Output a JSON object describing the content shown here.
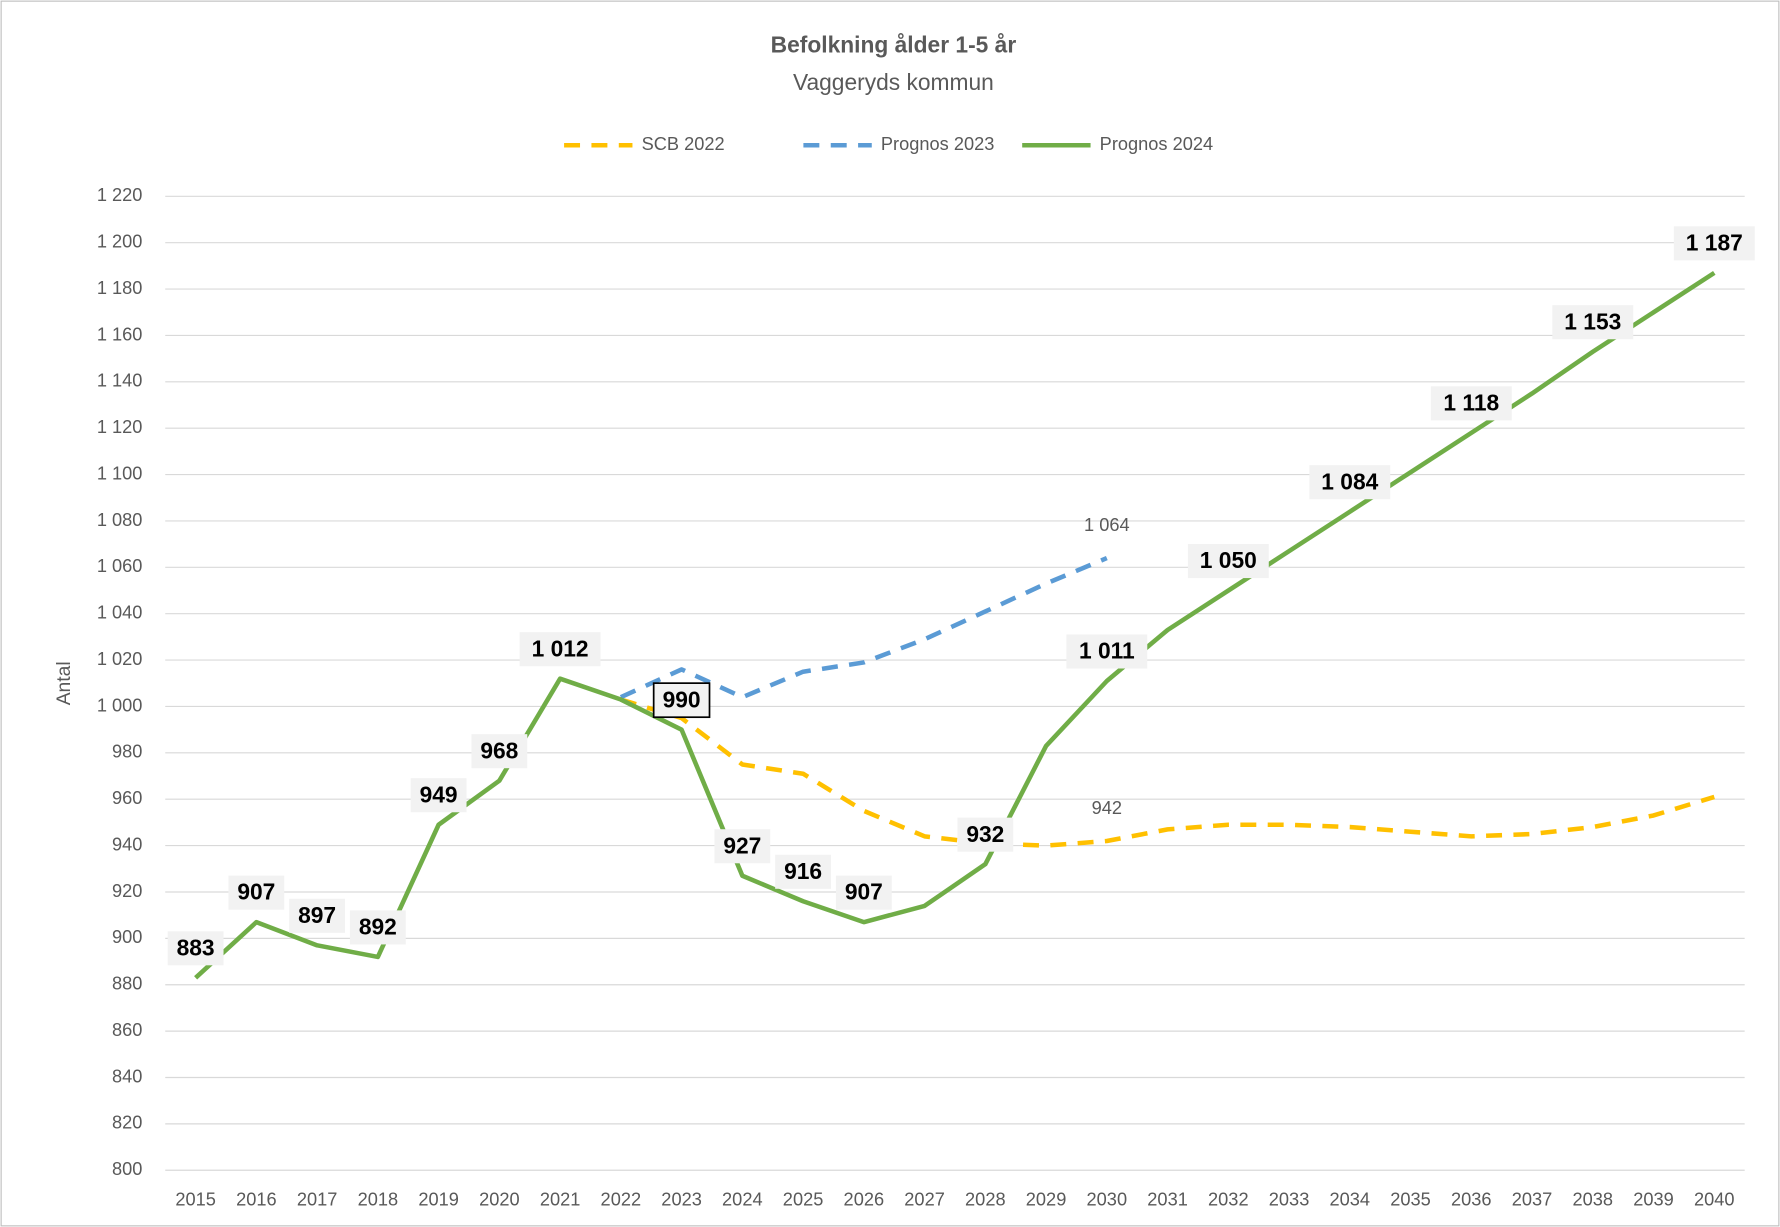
{
  "chart_data": {
    "type": "line",
    "title": "Befolkning ålder 1-5 år",
    "subtitle": "Vaggeryds kommun",
    "y_label": "Antal",
    "categories": [
      "2015",
      "2016",
      "2017",
      "2018",
      "2019",
      "2020",
      "2021",
      "2022",
      "2023",
      "2024",
      "2025",
      "2026",
      "2027",
      "2028",
      "2029",
      "2030",
      "2031",
      "2032",
      "2033",
      "2034",
      "2035",
      "2036",
      "2037",
      "2038",
      "2039",
      "2040"
    ],
    "ylim": [
      800,
      1220
    ],
    "yticks": [
      800,
      820,
      840,
      860,
      880,
      900,
      920,
      940,
      960,
      980,
      {
        "value": 1000,
        "label": "1 000"
      },
      {
        "value": 1020,
        "label": "1 020"
      },
      {
        "value": 1040,
        "label": "1 040"
      },
      {
        "value": 1060,
        "label": "1 060"
      },
      {
        "value": 1080,
        "label": "1 080"
      },
      {
        "value": 1100,
        "label": "1 100"
      },
      {
        "value": 1120,
        "label": "1 120"
      },
      {
        "value": 1140,
        "label": "1 140"
      },
      {
        "value": 1160,
        "label": "1 160"
      },
      {
        "value": 1180,
        "label": "1 180"
      },
      {
        "value": 1200,
        "label": "1 200"
      },
      {
        "value": 1220,
        "label": "1 220"
      }
    ],
    "grid": true,
    "legend": "top",
    "series": [
      {
        "name": "SCB 2022",
        "color": "#ffc000",
        "dashed": true,
        "values": [
          null,
          null,
          null,
          null,
          null,
          null,
          null,
          1003,
          995,
          975,
          971,
          955,
          944,
          941,
          940,
          942,
          947,
          949,
          949,
          948,
          946,
          944,
          945,
          948,
          953,
          961
        ],
        "value_labels": [
          null,
          null,
          null,
          null,
          null,
          null,
          null,
          null,
          null,
          null,
          null,
          null,
          null,
          null,
          null,
          "942",
          null,
          null,
          null,
          null,
          null,
          null,
          null,
          null,
          null,
          null
        ]
      },
      {
        "name": "Prognos 2023",
        "color": "#5b9bd5",
        "dashed": true,
        "values": [
          null,
          null,
          null,
          null,
          null,
          null,
          null,
          1004,
          1016,
          1004,
          1015,
          1019,
          1029,
          1041,
          1053,
          1064,
          null,
          null,
          null,
          null,
          null,
          null,
          null,
          null,
          null,
          null
        ],
        "value_labels": [
          null,
          null,
          null,
          null,
          null,
          null,
          null,
          null,
          null,
          null,
          null,
          null,
          null,
          null,
          null,
          "1 064",
          null,
          null,
          null,
          null,
          null,
          null,
          null,
          null,
          null,
          null
        ]
      },
      {
        "name": "Prognos 2024",
        "color": "#70ad47",
        "dashed": false,
        "values": [
          883,
          907,
          897,
          892,
          949,
          968,
          1012,
          1003,
          990,
          927,
          916,
          907,
          914,
          932,
          983,
          1011,
          1033,
          1050,
          1067,
          1084,
          1101,
          1118,
          1135,
          1153,
          1170,
          1187
        ],
        "value_labels": [
          "883",
          "907",
          "897",
          "892",
          "949",
          "968",
          "1 012",
          null,
          "990",
          "927",
          "916",
          "907",
          null,
          "932",
          null,
          "1 011",
          null,
          "1 050",
          null,
          "1 084",
          null,
          "1 118",
          null,
          "1 153",
          null,
          "1 187"
        ]
      }
    ]
  }
}
